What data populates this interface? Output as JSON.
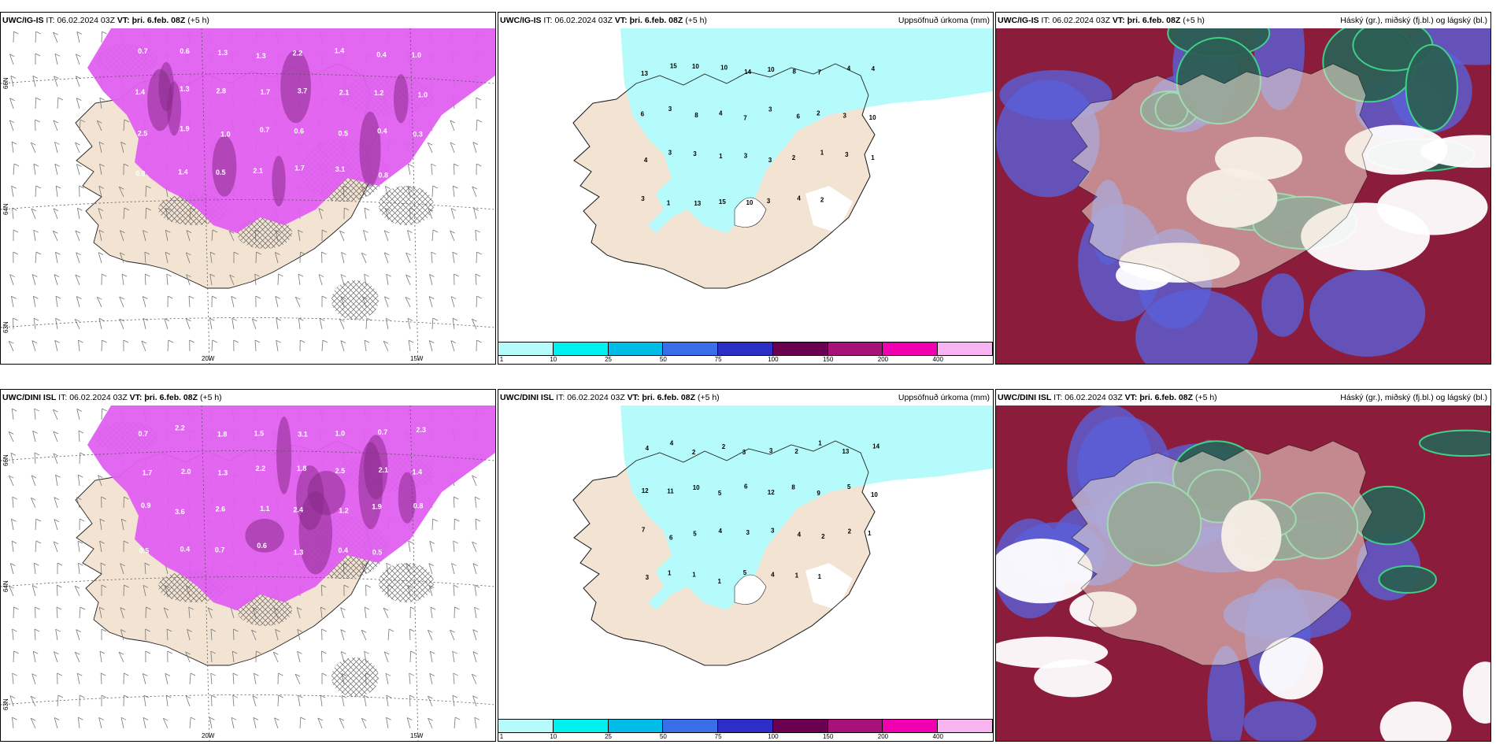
{
  "colors": {
    "land": "#f2e3d2",
    "land_alt": "#efe0cc",
    "ocean": "#ffffff",
    "precip_light": "#b6fbfb",
    "magenta": "#e05ff0",
    "magenta_dark": "#8a2a8a",
    "wine": "#8b1c3c",
    "teal": "#2d5f55",
    "blue": "#5a60d8",
    "green": "#3ed88a"
  },
  "panels": [
    {
      "name": "wind-precip-top",
      "model": "UWC/IG-IS",
      "it_label": "IT:",
      "it_value": "06.02.2024 03Z",
      "vt_label": "VT:",
      "vt_value": "þri. 6.feb. 08Z",
      "lead": "(+5 h)",
      "right_title": "",
      "lat_labels": [
        "66N",
        "64N",
        "63N"
      ],
      "lon_labels": [
        "20W",
        "15W"
      ],
      "values": [
        "0.7",
        "0.6",
        "1.3",
        "1.3",
        "2.2",
        "1.4",
        "0.4",
        "1.0",
        "1.4",
        "1.3",
        "2.8",
        "1.7",
        "3.7",
        "2.1",
        "1.2",
        "1.0",
        "2.5",
        "1.9",
        "1.0",
        "0.7",
        "0.6",
        "0.5",
        "0.4",
        "0.3",
        "0.9",
        "1.4",
        "0.5",
        "2.1",
        "1.7",
        "3.1",
        "0.8",
        "0.4"
      ]
    },
    {
      "name": "accum-precip-top",
      "model": "UWC/IG-IS",
      "it_label": "IT:",
      "it_value": "06.02.2024 03Z",
      "vt_label": "VT:",
      "vt_value": "þri. 6.feb. 08Z",
      "lead": "(+5 h)",
      "right_title": "Uppsöfnuð úrkoma (mm)",
      "values": [
        "13",
        "15",
        "10",
        "10",
        "14",
        "10",
        "8",
        "7",
        "4",
        "4",
        "6",
        "3",
        "8",
        "4",
        "7",
        "3",
        "6",
        "2",
        "3",
        "10",
        "4",
        "3",
        "3",
        "1",
        "3",
        "3",
        "2",
        "1",
        "3",
        "1",
        "3",
        "1",
        "13",
        "15",
        "10",
        "3",
        "4",
        "2"
      ]
    },
    {
      "name": "cloud-top",
      "model": "UWC/IG-IS",
      "it_label": "IT:",
      "it_value": "06.02.2024 03Z",
      "vt_label": "VT:",
      "vt_value": "þri. 6.feb. 08Z",
      "lead": "(+5 h)",
      "right_title": "Háský (gr.), miðský (fj.bl.) og lágský (bl.)"
    },
    {
      "name": "wind-precip-bottom",
      "model": "UWC/DINI ISL",
      "it_label": "IT:",
      "it_value": "06.02.2024 03Z",
      "vt_label": "VT:",
      "vt_value": "þri. 6.feb. 08Z",
      "lead": "(+5 h)",
      "right_title": "",
      "lat_labels": [
        "66N",
        "64N",
        "63N"
      ],
      "lon_labels": [
        "20W",
        "15W"
      ],
      "values": [
        "0.7",
        "2.2",
        "1.8",
        "1.5",
        "3.1",
        "1.0",
        "0.7",
        "2.3",
        "1.7",
        "2.0",
        "1.3",
        "2.2",
        "1.8",
        "2.5",
        "2.1",
        "1.4",
        "0.9",
        "3.6",
        "2.6",
        "1.1",
        "2.4",
        "1.2",
        "1.9",
        "0.8",
        "0.5",
        "0.4",
        "0.7",
        "0.6",
        "1.3",
        "0.4",
        "0.5",
        "0.2"
      ]
    },
    {
      "name": "accum-precip-bottom",
      "model": "UWC/DINI ISL",
      "it_label": "IT:",
      "it_value": "06.02.2024 03Z",
      "vt_label": "VT:",
      "vt_value": "þri. 6.feb. 08Z",
      "lead": "(+5 h)",
      "right_title": "Uppsöfnuð úrkoma (mm)",
      "values": [
        "4",
        "4",
        "2",
        "2",
        "3",
        "3",
        "2",
        "1",
        "13",
        "14",
        "12",
        "11",
        "10",
        "5",
        "6",
        "12",
        "8",
        "9",
        "5",
        "10",
        "7",
        "6",
        "5",
        "4",
        "3",
        "3",
        "4",
        "2",
        "2",
        "1",
        "3",
        "1",
        "1",
        "1",
        "5",
        "4",
        "1",
        "1"
      ]
    },
    {
      "name": "cloud-bottom",
      "model": "UWC/DINI ISL",
      "it_label": "IT:",
      "it_value": "06.02.2024 03Z",
      "vt_label": "VT:",
      "vt_value": "þri. 6.feb. 08Z",
      "lead": "(+5 h)",
      "right_title": "Háský (gr.), miðský (fj.bl.) og lágský (bl.)"
    }
  ],
  "colorbar": {
    "ticks": [
      "1",
      "10",
      "25",
      "50",
      "75",
      "100",
      "150",
      "200",
      "400"
    ],
    "colors": [
      "#b6fbfb",
      "#00f0f0",
      "#00bde8",
      "#3a6de8",
      "#2b2fc8",
      "#6a0050",
      "#a8107a",
      "#f000b0",
      "#f7b4f0"
    ]
  }
}
